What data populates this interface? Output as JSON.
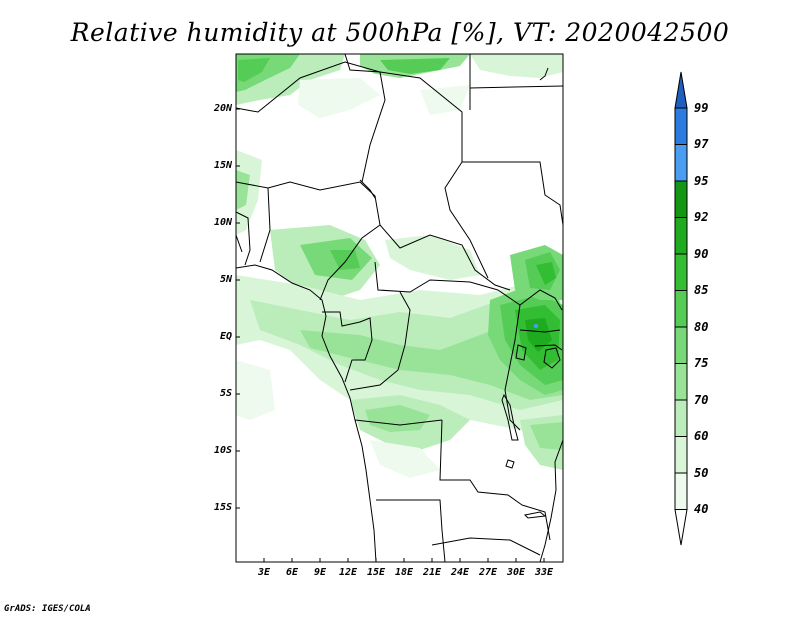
{
  "title": "Relative humidity at 500hPa [%], VT: 2020042500",
  "credit": "GrADS: IGES/COLA",
  "latitude_labels": [
    "20N",
    "15N",
    "10N",
    "5N",
    "EQ",
    "5S",
    "10S",
    "15S"
  ],
  "longitude_labels": [
    "3E",
    "6E",
    "9E",
    "12E",
    "15E",
    "18E",
    "21E",
    "24E",
    "27E",
    "30E",
    "33E"
  ],
  "colorbar": {
    "levels": [
      "99",
      "97",
      "95",
      "92",
      "90",
      "85",
      "80",
      "75",
      "70",
      "60",
      "50",
      "40"
    ],
    "colors": {
      "above_99": "#1f5fbf",
      "97_99": "#2b7be0",
      "95_97": "#4a9df0",
      "92_95": "#139613",
      "90_92": "#1fab1f",
      "85_90": "#33bd33",
      "80_85": "#55cc55",
      "75_80": "#77d977",
      "70_75": "#99e399",
      "60_70": "#bbedbb",
      "50_60": "#d8f5d8",
      "40_50": "#edfaed",
      "below_40": "#ffffff"
    }
  }
}
